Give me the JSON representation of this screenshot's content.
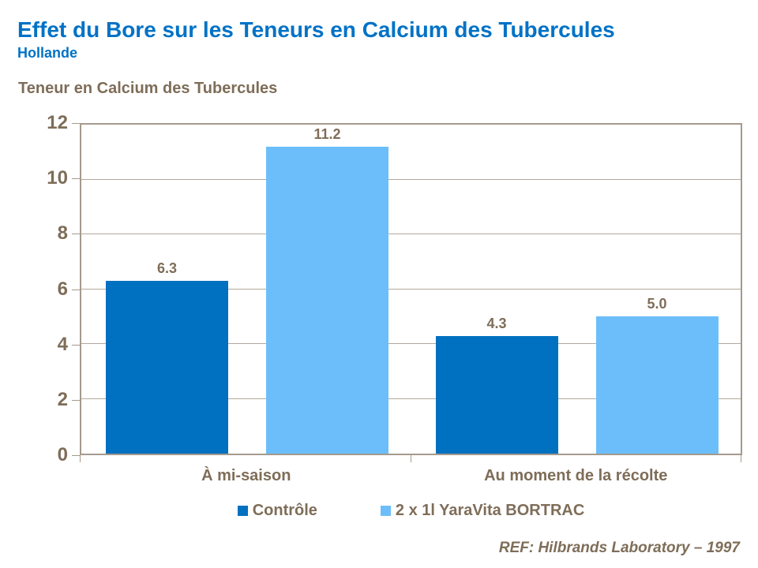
{
  "header": {
    "title": "Effet du Bore sur les Teneurs en Calcium des Tubercules",
    "subtitle": "Hollande"
  },
  "footer": {
    "reference": "REF: Hilbrands Laboratory – 1997"
  },
  "colors": {
    "title_blue": "#0072C6",
    "text_brown": "#7E6D58",
    "gridline": "#B3A99C",
    "plot_border": "#A49A8C",
    "control_blue": "#0070C0",
    "bortrac_blue": "#6CBEFA"
  },
  "chart_data": {
    "type": "bar",
    "title": "Teneur en Calcium des Tubercules",
    "categories": [
      "À mi-saison",
      "Au moment de la récolte"
    ],
    "series": [
      {
        "name": "Contrôle",
        "color": "#0070C0",
        "values": [
          6.3,
          4.3
        ],
        "labels": [
          "6.3",
          "4.3"
        ]
      },
      {
        "name": "2 x 1l YaraVita BORTRAC",
        "color": "#6CBEFA",
        "values": [
          11.2,
          5.0
        ],
        "labels": [
          "11.2",
          "5.0"
        ]
      }
    ],
    "xlabel": "",
    "ylabel": "",
    "ylim": [
      0,
      12
    ],
    "ytick_interval": 2,
    "grid": true,
    "legend_position": "bottom"
  }
}
